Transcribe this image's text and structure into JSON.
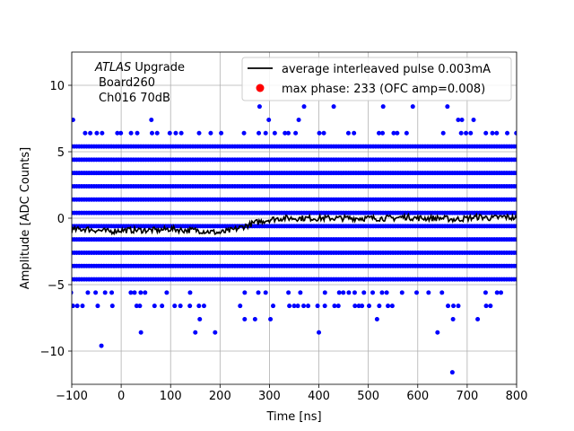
{
  "chart_data": {
    "type": "scatter",
    "xlabel": "Time [ns]",
    "ylabel": "Amplitude [ADC Counts]",
    "xlim": [
      -100,
      800
    ],
    "ylim": [
      -12.5,
      12.5
    ],
    "xticks": [
      -100,
      0,
      100,
      200,
      300,
      400,
      500,
      600,
      700,
      800
    ],
    "yticks": [
      -10,
      -5,
      0,
      5,
      10
    ],
    "grid": true,
    "legend_position": "top-right",
    "annotation": {
      "line1_italic": "ATLAS",
      "line1_rest": " Upgrade",
      "line2": "Board260",
      "line3": "Ch016 70dB"
    },
    "series": [
      {
        "name": "average interleaved pulse 0.003mA",
        "kind": "line",
        "color": "#000000",
        "points": [
          [
            -100,
            -0.9
          ],
          [
            -75,
            -0.8
          ],
          [
            -50,
            -0.9
          ],
          [
            -25,
            -1.0
          ],
          [
            0,
            -0.9
          ],
          [
            25,
            -0.9
          ],
          [
            50,
            -0.9
          ],
          [
            75,
            -0.9
          ],
          [
            100,
            -0.8
          ],
          [
            125,
            -0.9
          ],
          [
            150,
            -0.9
          ],
          [
            175,
            -1.0
          ],
          [
            200,
            -1.1
          ],
          [
            225,
            -0.9
          ],
          [
            250,
            -0.6
          ],
          [
            275,
            -0.3
          ],
          [
            300,
            -0.1
          ],
          [
            325,
            0.0
          ],
          [
            350,
            0.0
          ],
          [
            375,
            0.0
          ],
          [
            400,
            0.0
          ],
          [
            425,
            0.0
          ],
          [
            450,
            0.0
          ],
          [
            475,
            0.0
          ],
          [
            500,
            0.0
          ],
          [
            525,
            0.0
          ],
          [
            550,
            0.0
          ],
          [
            575,
            0.1
          ],
          [
            600,
            0.0
          ],
          [
            625,
            0.0
          ],
          [
            650,
            0.0
          ],
          [
            675,
            -0.1
          ],
          [
            700,
            0.0
          ],
          [
            725,
            0.1
          ],
          [
            750,
            0.0
          ],
          [
            775,
            0.1
          ],
          [
            800,
            0.0
          ]
        ]
      },
      {
        "name": "max phase: 233 (OFC amp=0.008)",
        "kind": "scatter",
        "color": "#ff0000",
        "points": []
      },
      {
        "name": "",
        "kind": "scatter",
        "color": "#0000ff",
        "dense_levels": [
          5.4,
          4.4,
          3.4,
          2.4,
          1.4,
          0.4,
          -0.6,
          -1.6,
          -2.6,
          -3.6,
          -4.6
        ],
        "sparse_levels": [
          7.4,
          6.4,
          -5.6,
          -6.6,
          -7.6
        ],
        "outliers": [
          [
            -40,
            -9.6
          ],
          [
            670,
            -11.6
          ],
          [
            40,
            -8.6
          ],
          [
            150,
            -8.6
          ],
          [
            190,
            -8.6
          ],
          [
            400,
            -8.6
          ],
          [
            640,
            -8.6
          ],
          [
            280,
            8.4
          ],
          [
            370,
            8.4
          ],
          [
            430,
            8.4
          ],
          [
            530,
            8.4
          ],
          [
            590,
            8.4
          ],
          [
            660,
            8.4
          ]
        ],
        "x_step_ns": 10
      }
    ]
  }
}
